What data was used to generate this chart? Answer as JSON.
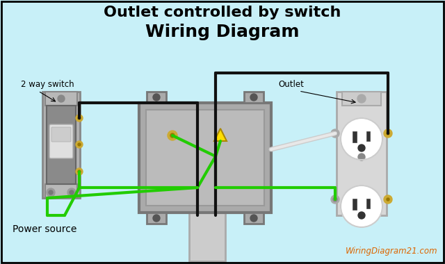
{
  "title1": "Outlet controlled by switch",
  "title2": "Wiring Diagram",
  "bg_color": "#c8f0f8",
  "border_color": "#000000",
  "label_switch": "2 way switch",
  "label_outlet": "Outlet",
  "label_power": "Power source",
  "label_brand": "WiringDiagram21.com",
  "title1_fontsize": 16,
  "title2_fontsize": 18,
  "brand_color": "#dd6600",
  "wire_black": "#111111",
  "wire_green": "#22cc00",
  "wire_white": "#cccccc",
  "wire_lw": 3.0,
  "switch_color": "#999999",
  "switch_plate_color": "#aaaaaa",
  "box_color": "#aaaaaa",
  "box_inner_color": "#bbbbbb",
  "outlet_color": "#ffffff",
  "outlet_plate_color": "#cccccc",
  "screw_color": "#888888",
  "screw_brass": "#ccaa33"
}
